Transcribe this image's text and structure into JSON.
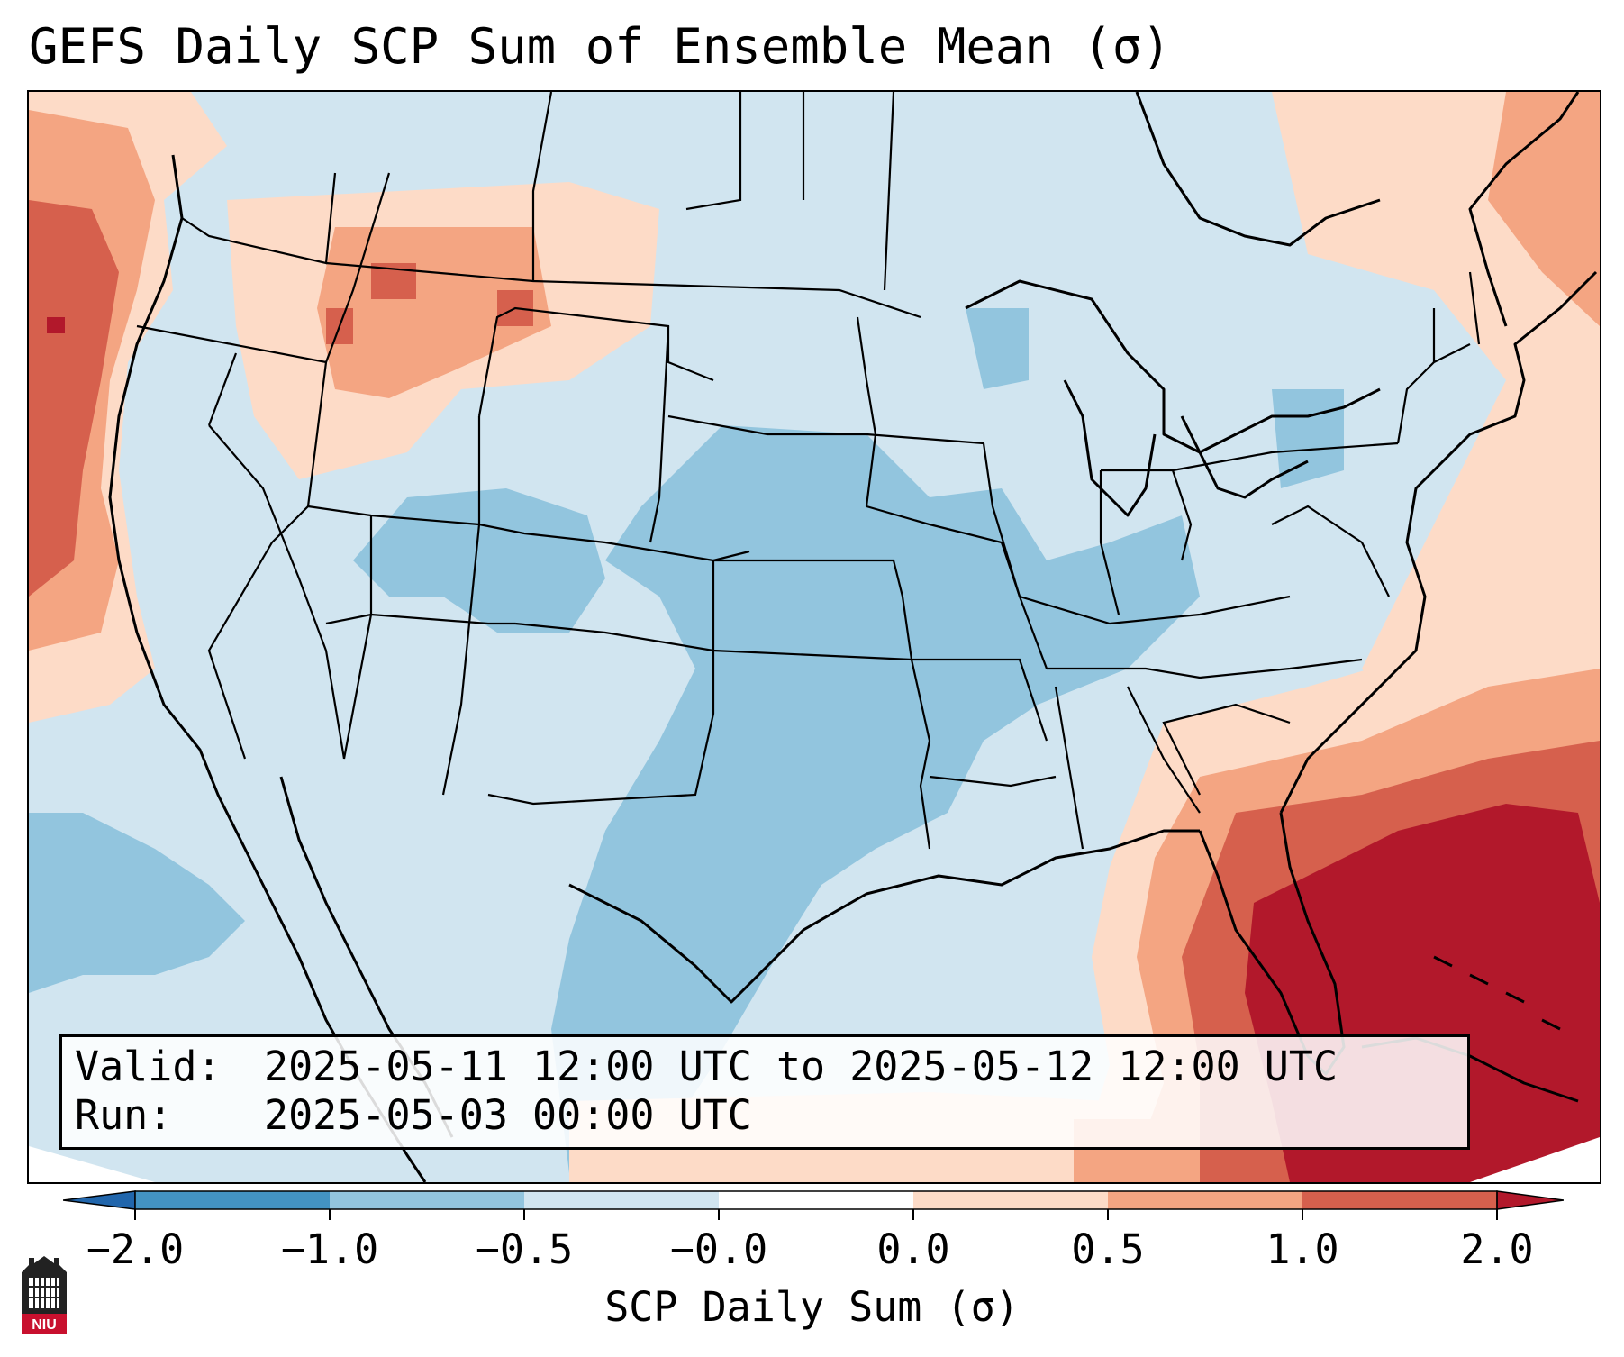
{
  "title": "GEFS Daily SCP Sum of Ensemble Mean (σ)",
  "info": {
    "valid_key": "Valid:",
    "valid_value": "2025-05-11 12:00 UTC to 2025-05-12 12:00 UTC",
    "run_key": "Run:",
    "run_value": "2025-05-03 00:00 UTC"
  },
  "colorbar": {
    "label": "SCP Daily Sum (σ)",
    "ticks": [
      "−2.0",
      "−1.0",
      "−0.5",
      "−0.0",
      "0.0",
      "0.5",
      "1.0",
      "2.0"
    ],
    "colors": {
      "below": "#2166ac",
      "b1": "#4393c3",
      "b2": "#92c5de",
      "b3": "#d1e5f0",
      "b4": "#fddbc7",
      "b5": "#f4a582",
      "b6": "#d6604d",
      "above": "#b2182b"
    }
  },
  "logo": {
    "text": "NIU",
    "color": "#c8102e"
  }
}
